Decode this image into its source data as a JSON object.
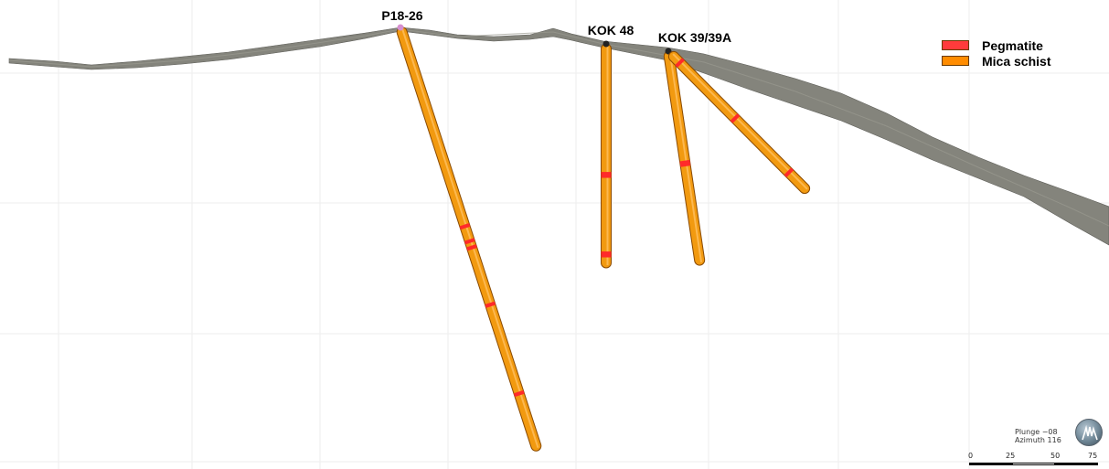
{
  "legend": {
    "items": [
      {
        "label": "Pegmatite",
        "color": "#ff3b3b"
      },
      {
        "label": "Mica schist",
        "color": "#ff8c00"
      }
    ]
  },
  "holes": [
    {
      "name": "P18-26",
      "color": "#f0960f",
      "pegmatite_fraction": [
        0.47,
        0.505,
        0.52,
        0.655,
        0.865
      ]
    },
    {
      "name": "KOK 48",
      "pegmatite_fraction": [
        0.58,
        0.59,
        0.935,
        0.945
      ]
    },
    {
      "name": "KOK 39/39A",
      "pegmatite_fraction": [
        0.52,
        0.53
      ]
    },
    {
      "name": "",
      "pegmatite_fraction": [
        0.07,
        0.47,
        0.86
      ]
    }
  ],
  "orientation": {
    "plunge": "Plunge −08",
    "azimuth": "Azimuth 116"
  },
  "scale": {
    "ticks": [
      "0",
      "25",
      "50",
      "75"
    ]
  },
  "colors": {
    "terrain": "#7a7a72",
    "mica_schist": "#f29a10",
    "pegmatite": "#ff2a2a",
    "grid": "#e9e9e9"
  }
}
